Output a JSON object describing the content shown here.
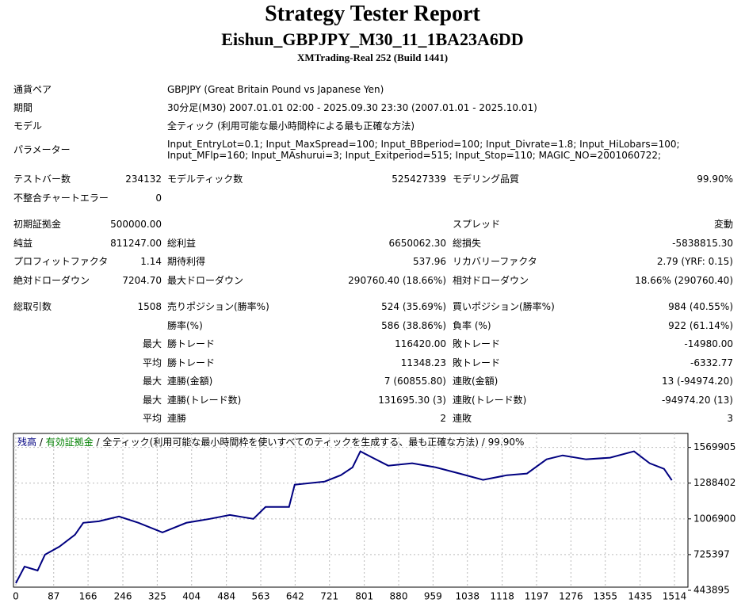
{
  "header": {
    "title": "Strategy Tester Report",
    "subtitle": "Eishun_GBPJPY_M30_11_1BA23A6DD",
    "build": "XMTrading-Real 252 (Build 1441)"
  },
  "report": {
    "rows": [
      {
        "label1": "通貨ペア",
        "wide": "GBPJPY (Great Britain Pound vs Japanese Yen)"
      },
      {
        "label1": "期間",
        "wide": "30分足(M30) 2007.01.01 02:00 - 2025.09.30 23:30 (2007.01.01 - 2025.10.01)"
      },
      {
        "label1": "モデル",
        "wide": "全ティック (利用可能な最小時間枠による最も正確な方法)"
      },
      {
        "label1": "パラメーター",
        "wide": "Input_EntryLot=0.1; Input_MaxSpread=100; Input_BBperiod=100; Input_Divrate=1.8; Input_HiLobars=100; Input_MFlp=160; Input_MAshurui=3; Input_Exitperiod=515; Input_Stop=110; MAGIC_NO=2001060722;"
      },
      {
        "label1": "テストバー数",
        "value1": "234132",
        "label2": "モデルティック数",
        "value2": "525427339",
        "label3": "モデリング品質",
        "value3": "99.90%"
      },
      {
        "label1": "不整合チャートエラー",
        "value1": "0"
      },
      {
        "label1": "初期証拠金",
        "value1": "500000.00",
        "label3": "スプレッド",
        "value3": "変動"
      },
      {
        "label1": "純益",
        "value1": "811247.00",
        "label2": "総利益",
        "value2": "6650062.30",
        "label3": "総損失",
        "value3": "-5838815.30"
      },
      {
        "label1": "プロフィットファクタ",
        "value1": "1.14",
        "label2": "期待利得",
        "value2": "537.96",
        "label3": "リカバリーファクタ",
        "value3": "2.79 (YRF: 0.15)"
      },
      {
        "label1": "絶対ドローダウン",
        "value1": "7204.70",
        "label2": "最大ドローダウン",
        "value2": "290760.40 (18.66%)",
        "label3": "相対ドローダウン",
        "value3": "18.66% (290760.40)"
      },
      {
        "label1": "総取引数",
        "value1": "1508",
        "label2": "売りポジション(勝率%)",
        "value2": "524 (35.69%)",
        "label3": "買いポジション(勝率%)",
        "value3": "984 (40.55%)"
      },
      {
        "label2": "勝率(%)",
        "value2": "586 (38.86%)",
        "label3": "負率 (%)",
        "value3": "922 (61.14%)"
      },
      {
        "value1": "最大",
        "label2": "勝トレード",
        "value2": "116420.00",
        "label3": "敗トレード",
        "value3": "-14980.00"
      },
      {
        "value1": "平均",
        "label2": "勝トレード",
        "value2": "11348.23",
        "label3": "敗トレード",
        "value3": "-6332.77"
      },
      {
        "value1": "最大",
        "label2": "連勝(金額)",
        "value2": "7 (60855.80)",
        "label3": "連敗(金額)",
        "value3": "13 (-94974.20)"
      },
      {
        "value1": "最大",
        "label2": "連勝(トレード数)",
        "value2": "131695.30 (3)",
        "label3": "連敗(トレード数)",
        "value3": "-94974.20 (13)"
      },
      {
        "value1": "平均",
        "label2": "連勝",
        "value2": "2",
        "label3": "連敗",
        "value3": "3"
      }
    ]
  },
  "chart_data": {
    "type": "line",
    "legend": [
      {
        "text": "残高",
        "color": "#000080"
      },
      {
        "text": " / ",
        "color": "#000000"
      },
      {
        "text": "有効証拠金",
        "color": "#008000"
      },
      {
        "text": " / 全ティック(利用可能な最小時間枠を使いすべてのティックを生成する、最も正確な方法) / 99.90%",
        "color": "#000000"
      }
    ],
    "x": [
      0,
      20,
      50,
      67,
      100,
      136,
      155,
      191,
      237,
      282,
      337,
      392,
      446,
      492,
      546,
      574,
      628,
      641,
      710,
      747,
      774,
      792,
      820,
      856,
      911,
      965,
      1020,
      1074,
      1129,
      1175,
      1220,
      1257,
      1311,
      1366,
      1421,
      1457,
      1490,
      1508
    ],
    "series": [
      {
        "name": "残高",
        "color": "#000080",
        "values": [
          500000,
          631000,
          600000,
          725000,
          788000,
          882000,
          976000,
          988000,
          1026000,
          976000,
          900000,
          976000,
          1007000,
          1038000,
          1007000,
          1101000,
          1101000,
          1276000,
          1301000,
          1351000,
          1413000,
          1539000,
          1489000,
          1426000,
          1445000,
          1413000,
          1364000,
          1314000,
          1351000,
          1364000,
          1476000,
          1507000,
          1476000,
          1489000,
          1539000,
          1445000,
          1401000,
          1311247
        ]
      }
    ],
    "xlim": [
      0,
      1545
    ],
    "ylim": [
      443895,
      1680000
    ],
    "xticks": [
      0,
      87,
      166,
      246,
      325,
      404,
      484,
      563,
      642,
      721,
      801,
      880,
      959,
      1038,
      1118,
      1197,
      1276,
      1355,
      1435,
      1514
    ],
    "yticks": [
      443895,
      725397,
      1006900,
      1288402,
      1569905
    ],
    "grid": true
  }
}
